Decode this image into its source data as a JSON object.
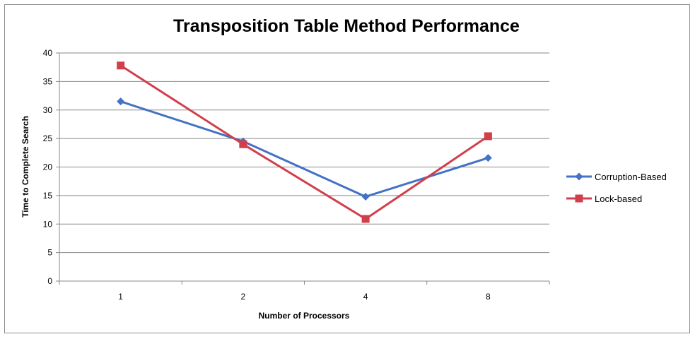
{
  "chart_data": {
    "type": "line",
    "title": "Transposition Table Method Performance",
    "xlabel": "Number of Processors",
    "ylabel": "Time to Complete Search",
    "categories": [
      "1",
      "2",
      "4",
      "8"
    ],
    "ylim": [
      0,
      40
    ],
    "yticks": [
      0,
      5,
      10,
      15,
      20,
      25,
      30,
      35,
      40
    ],
    "grid": true,
    "legend_position": "right",
    "series": [
      {
        "name": "Corruption-Based",
        "values": [
          31.5,
          24.5,
          14.8,
          21.6
        ],
        "color": "#4472C4",
        "marker": "diamond"
      },
      {
        "name": "Lock-based",
        "values": [
          37.8,
          24.0,
          10.9,
          25.4
        ],
        "color": "#D13F4B",
        "marker": "square"
      }
    ]
  }
}
